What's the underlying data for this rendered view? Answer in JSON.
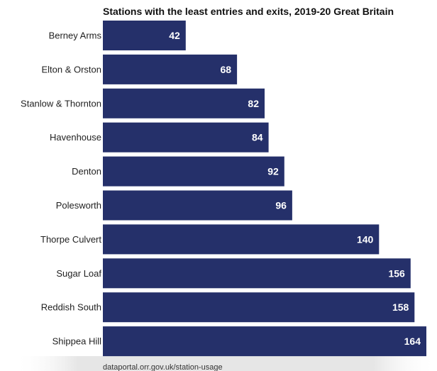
{
  "chart_data": {
    "type": "bar",
    "orientation": "horizontal",
    "title": "Stations with the least entries and exits, 2019-20 Great Britain",
    "source": "dataportal.orr.gov.uk/station-usage",
    "categories": [
      "Berney Arms",
      "Elton & Orston",
      "Stanlow & Thornton",
      "Havenhouse",
      "Denton",
      "Polesworth",
      "Thorpe Culvert",
      "Sugar Loaf",
      "Reddish South",
      "Shippea Hill"
    ],
    "values": [
      42,
      68,
      82,
      84,
      92,
      96,
      140,
      156,
      158,
      164
    ],
    "value_labels": [
      "42",
      "68",
      "82",
      "84",
      "92",
      "96",
      "140",
      "156",
      "158",
      "164"
    ],
    "xlim": [
      0,
      164
    ],
    "grid": false,
    "legend": "none",
    "colors": {
      "bar": "#25306a",
      "value_label": "#ffffff",
      "text": "#222222"
    }
  }
}
